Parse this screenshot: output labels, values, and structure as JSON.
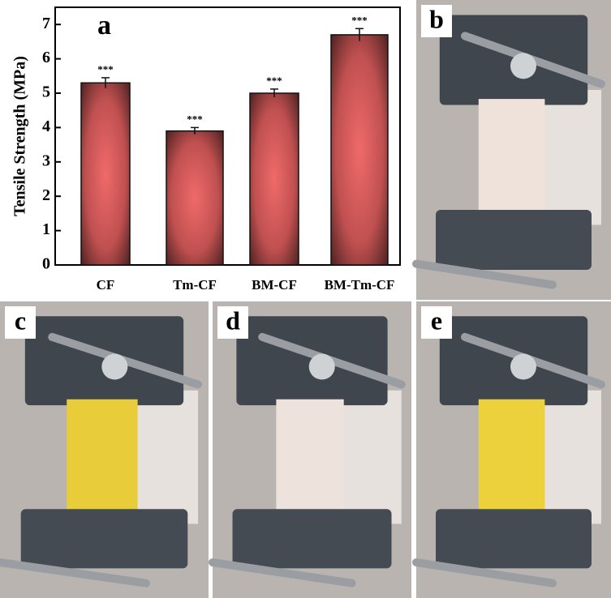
{
  "chart_data": {
    "type": "bar",
    "panel_label": "a",
    "y_label": "Tensile Strength (MPa)",
    "categories": [
      "CF",
      "Tm-CF",
      "BM-CF",
      "BM-Tm-CF"
    ],
    "values": [
      5.3,
      3.9,
      5.0,
      6.7
    ],
    "errors": [
      0.15,
      0.1,
      0.12,
      0.18
    ],
    "annotations": [
      "***",
      "***",
      "***",
      "***"
    ],
    "color": "#f06a6a",
    "ylim": [
      0,
      7.5
    ],
    "yticks": [
      0,
      1,
      2,
      3,
      4,
      5,
      6,
      7
    ]
  },
  "panels": [
    {
      "label": "b",
      "sample": "#efe2da"
    },
    {
      "label": "c",
      "sample": "#e9cc3a"
    },
    {
      "label": "d",
      "sample": "#eee2dc"
    },
    {
      "label": "e",
      "sample": "#ecd03c"
    }
  ]
}
